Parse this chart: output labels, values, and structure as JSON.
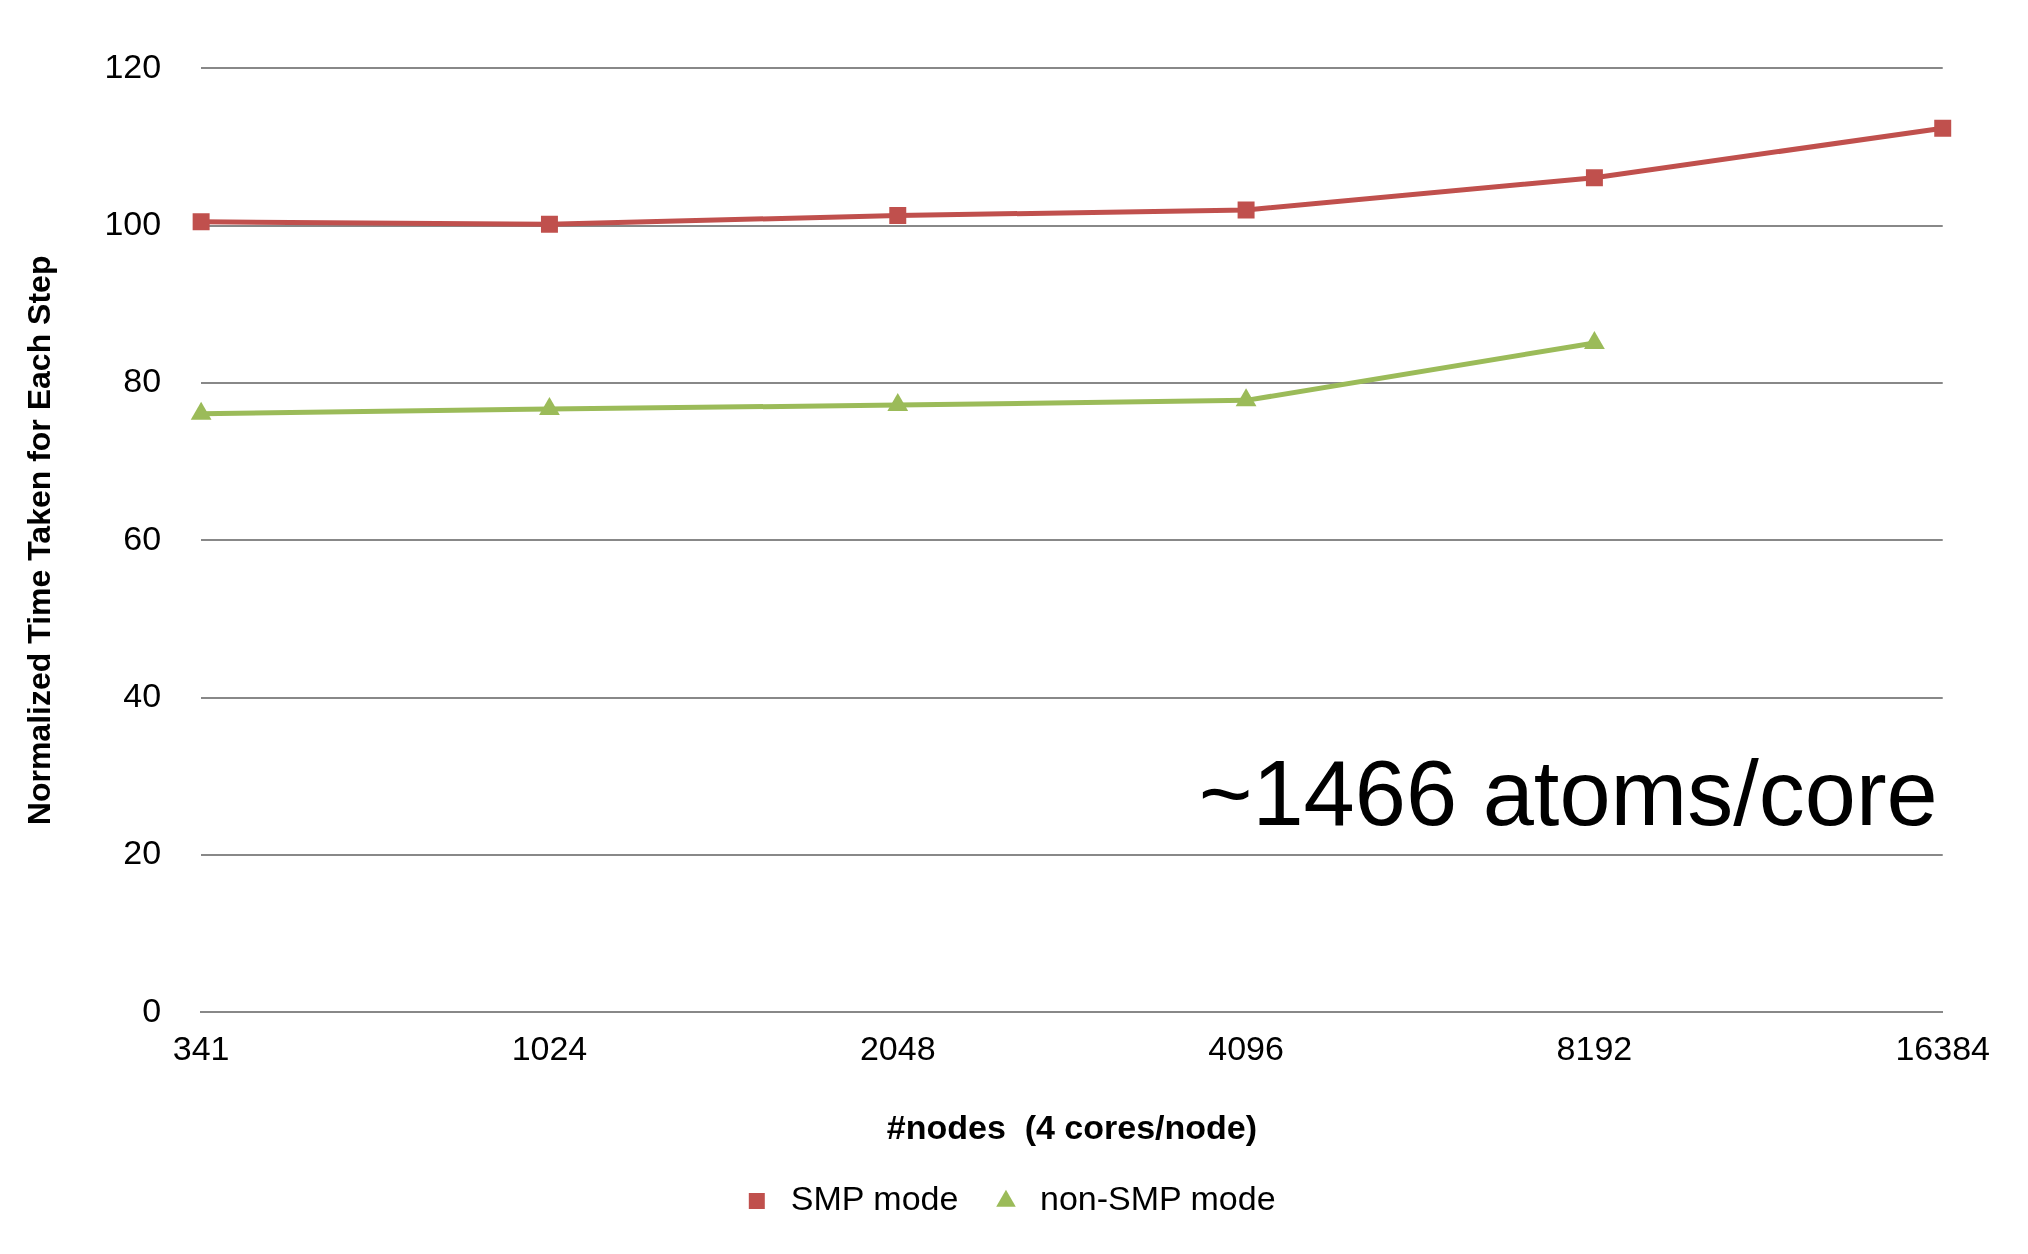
{
  "chart_data": {
    "type": "line",
    "categories": [
      "341",
      "1024",
      "2048",
      "4096",
      "8192",
      "16384"
    ],
    "series": [
      {
        "name": "SMP mode",
        "color": "#c0504d",
        "marker": "square",
        "values": [
          100.5,
          100.2,
          101.3,
          102.0,
          106.1,
          112.4
        ]
      },
      {
        "name": "non-SMP mode",
        "color": "#9bbb59",
        "marker": "triangle",
        "values": [
          76.1,
          76.7,
          77.2,
          77.8,
          85.1,
          null
        ]
      }
    ],
    "ylim": [
      0,
      120
    ],
    "yticks": [
      0,
      20,
      40,
      60,
      80,
      100,
      120
    ],
    "xlabel": "#nodes  (4 cores/node)",
    "ylabel": "Normalized Time Taken for Each Step",
    "annotations": [
      "~1466 atoms/core"
    ],
    "grid": "y",
    "legend": "bottom"
  }
}
